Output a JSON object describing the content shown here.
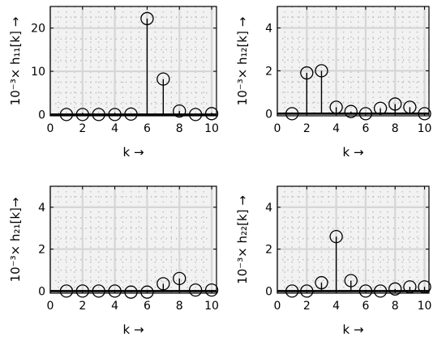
{
  "chart_data": [
    {
      "type": "stem",
      "x": [
        1,
        2,
        3,
        4,
        5,
        6,
        7,
        8,
        9,
        10
      ],
      "values": [
        0,
        0,
        0,
        0,
        0.1,
        22.2,
        8.2,
        0.8,
        0,
        0.2
      ],
      "xlabel": "k →",
      "ylabel": "10⁻³× h₁₁[k] →",
      "xlim": [
        0,
        10.3
      ],
      "ylim": [
        -0.3,
        25
      ],
      "xticks": [
        0,
        2,
        4,
        6,
        8,
        10
      ],
      "yticks": [
        0,
        10,
        20
      ],
      "grid": true
    },
    {
      "type": "stem",
      "x": [
        1,
        2,
        3,
        4,
        5,
        6,
        7,
        8,
        9,
        10
      ],
      "values": [
        0,
        1.9,
        2.0,
        0.3,
        0.1,
        0,
        0.25,
        0.45,
        0.3,
        0
      ],
      "xlabel": "k →",
      "ylabel": "10⁻³× h₁₂[k] →",
      "xlim": [
        0,
        10.3
      ],
      "ylim": [
        -0.1,
        5
      ],
      "xticks": [
        0,
        2,
        4,
        6,
        8,
        10
      ],
      "yticks": [
        0,
        2,
        4
      ],
      "grid": true
    },
    {
      "type": "stem",
      "x": [
        1,
        2,
        3,
        4,
        5,
        6,
        7,
        8,
        9,
        10
      ],
      "values": [
        0,
        0,
        0,
        0,
        -0.05,
        -0.05,
        0.35,
        0.6,
        0.05,
        0.05
      ],
      "xlabel": "k →",
      "ylabel": "10⁻³× h₂₁[k]→",
      "xlim": [
        0,
        10.3
      ],
      "ylim": [
        -0.1,
        5
      ],
      "xticks": [
        0,
        2,
        4,
        6,
        8,
        10
      ],
      "yticks": [
        0,
        2,
        4
      ],
      "grid": true
    },
    {
      "type": "stem",
      "x": [
        1,
        2,
        3,
        4,
        5,
        6,
        7,
        8,
        9,
        10
      ],
      "values": [
        0,
        0,
        0.4,
        2.6,
        0.5,
        0,
        0,
        0.1,
        0.2,
        0.2
      ],
      "xlabel": "k →",
      "ylabel": "10⁻³× h₂₂[k] →",
      "xlim": [
        0,
        10.3
      ],
      "ylim": [
        -0.1,
        5
      ],
      "xticks": [
        0,
        2,
        4,
        6,
        8,
        10
      ],
      "yticks": [
        0,
        2,
        4
      ],
      "grid": true
    }
  ]
}
